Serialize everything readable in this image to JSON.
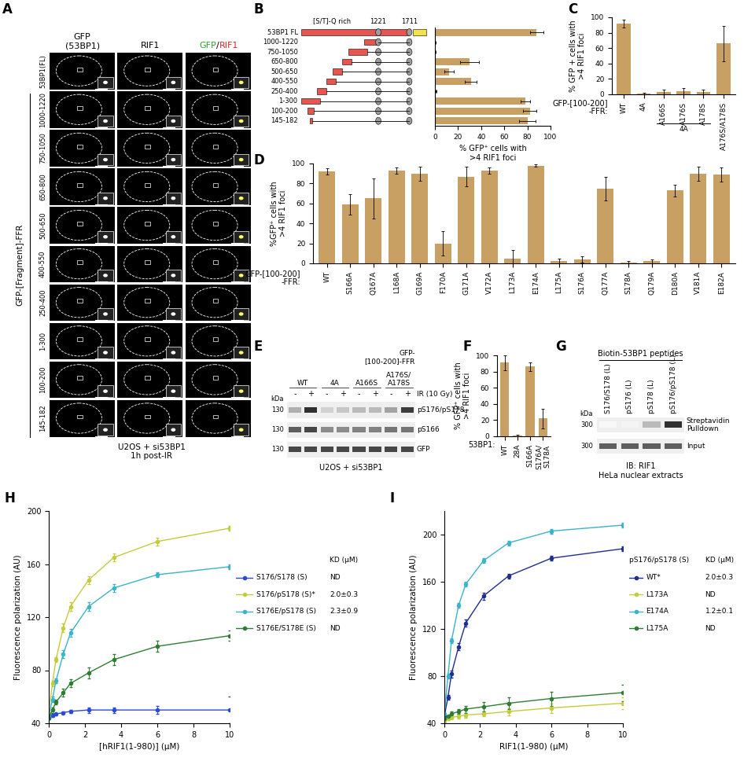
{
  "images": {
    "panel": "A",
    "columns": [
      {
        "text": "GFP\n(53BP1)"
      },
      {
        "text": "RIF1"
      },
      {
        "parts": [
          {
            "text": "GFP",
            "color": "#2ca02c"
          },
          {
            "text": "/",
            "color": "#000000"
          },
          {
            "text": "RIF1",
            "color": "#d62728"
          }
        ]
      }
    ],
    "rows": [
      "53BP1(FL)",
      "1000-1220",
      "750-1050",
      "650-800",
      "500-650",
      "400-550",
      "250-400",
      "1-300",
      "100-200",
      "145-182"
    ],
    "group_label": "GFP-[Fragment]-FFR",
    "caption": "U2OS + si53BP1\n1h post-IR"
  },
  "schematic": {
    "label": "[S/T]-Q rich",
    "ffr": [
      1221,
      1711
    ],
    "rows": [
      {
        "label": "53BP1 FL",
        "range": null
      },
      {
        "label": "1000-1220",
        "range": [
          1000,
          1220
        ]
      },
      {
        "label": "750-1050",
        "range": [
          750,
          1050
        ]
      },
      {
        "label": "650-800",
        "range": [
          650,
          800
        ]
      },
      {
        "label": "500-650",
        "range": [
          500,
          650
        ]
      },
      {
        "label": "400-550",
        "range": [
          400,
          550
        ]
      },
      {
        "label": "250-400",
        "range": [
          250,
          400
        ]
      },
      {
        "label": "1-300",
        "range": [
          1,
          300
        ]
      },
      {
        "label": "100-200",
        "range": [
          100,
          200
        ]
      },
      {
        "label": "145-182",
        "range": [
          145,
          182
        ]
      }
    ]
  },
  "chart_data": [
    {
      "panel": "B",
      "type": "bar",
      "orientation": "horizontal",
      "categories": [
        "53BP1 FL",
        "1000-1220",
        "750-1050",
        "650-800",
        "500-650",
        "400-550",
        "250-400",
        "1-300",
        "100-200",
        "145-182"
      ],
      "values": [
        88,
        0,
        0,
        30,
        12,
        31,
        1,
        78,
        82,
        80
      ],
      "errors": [
        6,
        0.5,
        0.5,
        8,
        4,
        5,
        0.5,
        4,
        6,
        7
      ],
      "color": "#c9a063",
      "xlim": [
        0,
        100
      ],
      "xticks": [
        0,
        20,
        40,
        60,
        80,
        100
      ],
      "xlabel": "% GFP⁺ cells with\n>4 RIF1 foci",
      "tick_labels": "x"
    },
    {
      "panel": "C",
      "type": "bar",
      "categories": [
        "WT",
        "4A",
        "A166S",
        "A176S",
        "A178S",
        "A176S/A178S"
      ],
      "values": [
        92,
        1,
        3,
        4,
        3,
        66
      ],
      "errors": [
        5,
        1,
        3,
        4,
        3,
        23
      ],
      "color": "#c9a063",
      "ylim": [
        0,
        100
      ],
      "yticks": [
        0,
        20,
        40,
        60,
        80,
        100
      ],
      "ylabel": "% GFP + cells with\n>4 RIF1 foci",
      "xlabel": "GFP-[100-200]\n-FFR:",
      "annotations": [
        {
          "text": "4A",
          "from": "A166S",
          "to": "A178S"
        }
      ]
    },
    {
      "panel": "D",
      "type": "bar",
      "categories": [
        "WT",
        "S166A",
        "Q167A",
        "L168A",
        "G169A",
        "F170A",
        "G171A",
        "V172A",
        "L173A",
        "E174A",
        "L175A",
        "S176A",
        "Q177A",
        "S178A",
        "Q179A",
        "D180A",
        "V181A",
        "E182A"
      ],
      "values": [
        92,
        59,
        65,
        93,
        90,
        20,
        87,
        93,
        5,
        98,
        2,
        4,
        75,
        1,
        2,
        73,
        90,
        89
      ],
      "errors": [
        3,
        10,
        20,
        3,
        7,
        12,
        10,
        3,
        8,
        1,
        3,
        3,
        12,
        1,
        2,
        6,
        7,
        7
      ],
      "color": "#c9a063",
      "ylim": [
        0,
        100
      ],
      "yticks": [
        0,
        20,
        40,
        60,
        80,
        100
      ],
      "ylabel": "%GFP⁺ cells with\n>4 RIF1 foci",
      "xlabel": "GFP-[100-200]\n-FFR:"
    },
    {
      "panel": "F",
      "type": "bar",
      "categories": [
        "WT",
        "28A",
        "S166A",
        "S176A/\nS178A"
      ],
      "values": [
        91,
        1,
        86,
        22
      ],
      "errors": [
        9,
        1,
        5,
        12
      ],
      "color": "#c9a063",
      "ylim": [
        0,
        100
      ],
      "yticks": [
        0,
        20,
        40,
        60,
        80,
        100
      ],
      "ylabel": "% GFP⁺ cells with\n>4 RIF1 foci",
      "xlabel": "53BP1:"
    },
    {
      "panel": "H",
      "type": "line",
      "legend": "right",
      "x": [
        0,
        0.2,
        0.4,
        0.8,
        1.2,
        2.2,
        3.6,
        6,
        10
      ],
      "xlim": [
        0,
        10
      ],
      "xticks": [
        0,
        2,
        4,
        6,
        8,
        10
      ],
      "ylim": [
        40,
        200
      ],
      "yticks": [
        40,
        80,
        120,
        160,
        200
      ],
      "xlabel": "[hRIF1(1-980)] (µM)",
      "ylabel": "Fluorescence polarization (AU)",
      "kd_label": "KD (µM)",
      "series": [
        {
          "name": "S176/S178 (S)",
          "color": "#2a4bd7",
          "marker": "o",
          "kd": "ND",
          "values": [
            44,
            46,
            47,
            48,
            49,
            50,
            50,
            50,
            50
          ],
          "errors": [
            1,
            1,
            1,
            1,
            1,
            2,
            2,
            3,
            10
          ]
        },
        {
          "name": "S176/pS178 (S)*",
          "color": "#c5cc3b",
          "marker": "o",
          "kd": "2.0±0.3",
          "values": [
            48,
            70,
            88,
            112,
            128,
            148,
            165,
            177,
            187
          ],
          "errors": [
            2,
            2,
            2,
            3,
            3,
            3,
            3,
            3,
            2
          ]
        },
        {
          "name": "S176E/pS178 (S)",
          "color": "#3bb3c9",
          "marker": "o",
          "kd": "2.3±0.9",
          "values": [
            46,
            58,
            72,
            92,
            108,
            128,
            142,
            152,
            158
          ],
          "errors": [
            1,
            2,
            2,
            3,
            3,
            3,
            3,
            2,
            2
          ]
        },
        {
          "name": "S176E/S178E (S)",
          "color": "#2e7d32",
          "marker": "o",
          "kd": "ND",
          "values": [
            44,
            50,
            56,
            63,
            70,
            78,
            88,
            98,
            106
          ],
          "errors": [
            1,
            2,
            2,
            3,
            3,
            4,
            4,
            4,
            4
          ]
        }
      ]
    },
    {
      "panel": "I",
      "type": "line",
      "legend": "right",
      "legend_title": "pS176/pS178 (S)",
      "x": [
        0,
        0.2,
        0.4,
        0.8,
        1.2,
        2.2,
        3.6,
        6,
        10
      ],
      "xlim": [
        0,
        10
      ],
      "xticks": [
        0,
        2,
        4,
        6,
        8,
        10
      ],
      "ylim": [
        40,
        220
      ],
      "yticks": [
        40,
        80,
        120,
        160,
        200
      ],
      "xlabel": "RIF1(1-980) (µM)",
      "ylabel": "Fluorescence polarization (AU)",
      "kd_label": "KD (µM)",
      "series": [
        {
          "name": "WT*",
          "color": "#1f2e8f",
          "marker": "o",
          "kd": "2.0±0.3",
          "values": [
            46,
            62,
            82,
            105,
            125,
            148,
            165,
            180,
            188
          ],
          "errors": [
            1,
            2,
            3,
            3,
            3,
            3,
            2,
            2,
            2
          ]
        },
        {
          "name": "L173A",
          "color": "#c5cc3b",
          "marker": "o",
          "kd": "ND",
          "values": [
            42,
            44,
            45,
            46,
            47,
            48,
            50,
            53,
            57
          ],
          "errors": [
            1,
            1,
            1,
            2,
            2,
            2,
            3,
            4,
            5
          ]
        },
        {
          "name": "E174A",
          "color": "#3bb3c9",
          "marker": "o",
          "kd": "1.2±0.1",
          "values": [
            48,
            80,
            110,
            140,
            158,
            178,
            193,
            203,
            208
          ],
          "errors": [
            1,
            2,
            2,
            2,
            2,
            2,
            2,
            2,
            2
          ]
        },
        {
          "name": "L175A",
          "color": "#2e7d32",
          "marker": "o",
          "kd": "ND",
          "values": [
            44,
            46,
            48,
            50,
            52,
            54,
            57,
            61,
            66
          ],
          "errors": [
            1,
            1,
            2,
            2,
            3,
            4,
            5,
            6,
            7
          ]
        }
      ]
    }
  ],
  "blots": [
    {
      "panel": "E",
      "header": "GFP-\n[100-200]-FFR",
      "samples": [
        "WT",
        "4A",
        "A166S",
        "A176S/\nA178S"
      ],
      "treatment": {
        "label": "IR (10 Gy)",
        "states": [
          "-",
          "+"
        ]
      },
      "kda_label": "kDa",
      "rows": [
        {
          "label": "pS176/pS178",
          "kda": 130,
          "intensity": [
            0.35,
            0.9,
            0.2,
            0.25,
            0.3,
            0.3,
            0.4,
            0.85
          ]
        },
        {
          "label": "pS166",
          "kda": 130,
          "intensity": [
            0.7,
            0.8,
            0.5,
            0.5,
            0.55,
            0.55,
            0.6,
            0.6
          ]
        },
        {
          "label": "GFP",
          "kda": 130,
          "intensity": [
            0.8,
            0.8,
            0.8,
            0.8,
            0.8,
            0.8,
            0.8,
            0.8
          ]
        }
      ],
      "caption": "U2OS + si53BP1"
    },
    {
      "panel": "G",
      "header": "Biotin-53BP1 peptides",
      "lanes": [
        "S176/S178 (L)",
        "pS176 (L)",
        "pS178 (L)",
        "pS176/pS178 (L)"
      ],
      "kda_label": "kDa",
      "rows": [
        {
          "label": "Streptavidin\nPulldown",
          "kda": 300,
          "intensity": [
            0.03,
            0.05,
            0.3,
            0.9
          ]
        },
        {
          "label": "Input",
          "kda": 300,
          "intensity": [
            0.7,
            0.7,
            0.7,
            0.7
          ]
        }
      ],
      "caption": "IB: RIF1\nHeLa nuclear extracts"
    }
  ]
}
